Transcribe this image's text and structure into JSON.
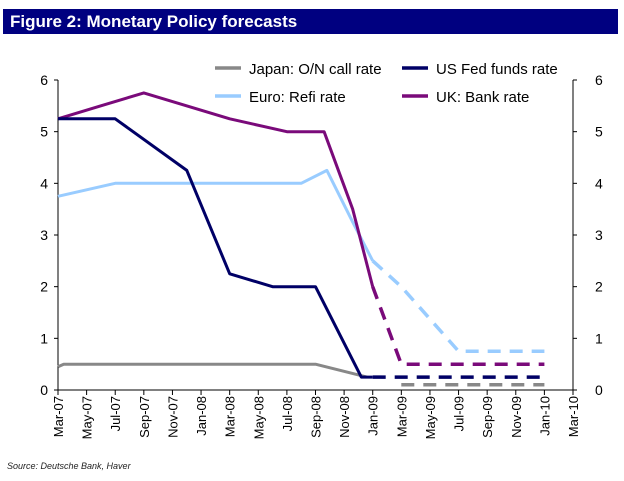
{
  "figure": {
    "title": "Figure 2: Monetary Policy forecasts",
    "source": "Source: Deutsche Bank, Haver"
  },
  "chart_data": {
    "type": "line",
    "x": [
      "Mar-07",
      "May-07",
      "Jul-07",
      "Sep-07",
      "Nov-07",
      "Jan-08",
      "Mar-08",
      "May-08",
      "Jul-08",
      "Sep-08",
      "Nov-08",
      "Jan-09",
      "Mar-09",
      "May-09",
      "Jul-09",
      "Sep-09",
      "Nov-09",
      "Jan-10",
      "Mar-10"
    ],
    "ylim": [
      0,
      6
    ],
    "yticks": [
      "0",
      "1",
      "2",
      "3",
      "4",
      "5",
      "6"
    ],
    "grid": false,
    "legend_position": "top-right",
    "secondary_y_axis": true,
    "colors": {
      "japan": "#888888",
      "us": "#000066",
      "euro": "#99ccff",
      "uk": "#7a0a7a"
    },
    "series": [
      {
        "name": "Japan: O/N call rate",
        "key": "japan",
        "actual": [
          [
            0,
            0.45
          ],
          [
            0.2,
            0.5
          ],
          [
            9,
            0.5
          ],
          [
            10.8,
            0.25
          ]
        ],
        "forecast": [
          [
            12,
            0.1
          ],
          [
            17,
            0.1
          ]
        ]
      },
      {
        "name": "US Fed funds rate",
        "key": "us",
        "actual": [
          [
            0,
            5.25
          ],
          [
            2,
            5.25
          ],
          [
            4.5,
            4.25
          ],
          [
            6,
            2.25
          ],
          [
            7.5,
            2.0
          ],
          [
            9,
            2.0
          ],
          [
            10.6,
            0.25
          ],
          [
            11,
            0.25
          ]
        ],
        "forecast": [
          [
            11,
            0.25
          ],
          [
            17,
            0.25
          ]
        ]
      },
      {
        "name": "Euro: Refi rate",
        "key": "euro",
        "actual": [
          [
            0,
            3.75
          ],
          [
            2,
            4.0
          ],
          [
            4,
            4.0
          ],
          [
            7,
            4.0
          ],
          [
            8.5,
            4.0
          ],
          [
            9.4,
            4.25
          ],
          [
            10.3,
            3.25
          ],
          [
            11,
            2.5
          ]
        ],
        "forecast": [
          [
            11,
            2.5
          ],
          [
            12,
            2.0
          ],
          [
            14,
            0.75
          ],
          [
            17,
            0.75
          ]
        ]
      },
      {
        "name": "UK: Bank rate",
        "key": "uk",
        "actual": [
          [
            0,
            5.25
          ],
          [
            1.5,
            5.5
          ],
          [
            3,
            5.75
          ],
          [
            6,
            5.25
          ],
          [
            8,
            5.0
          ],
          [
            9.3,
            5.0
          ],
          [
            10.3,
            3.5
          ],
          [
            11,
            2.0
          ]
        ],
        "forecast": [
          [
            11,
            2.0
          ],
          [
            12,
            0.5
          ],
          [
            17,
            0.5
          ]
        ]
      }
    ]
  }
}
